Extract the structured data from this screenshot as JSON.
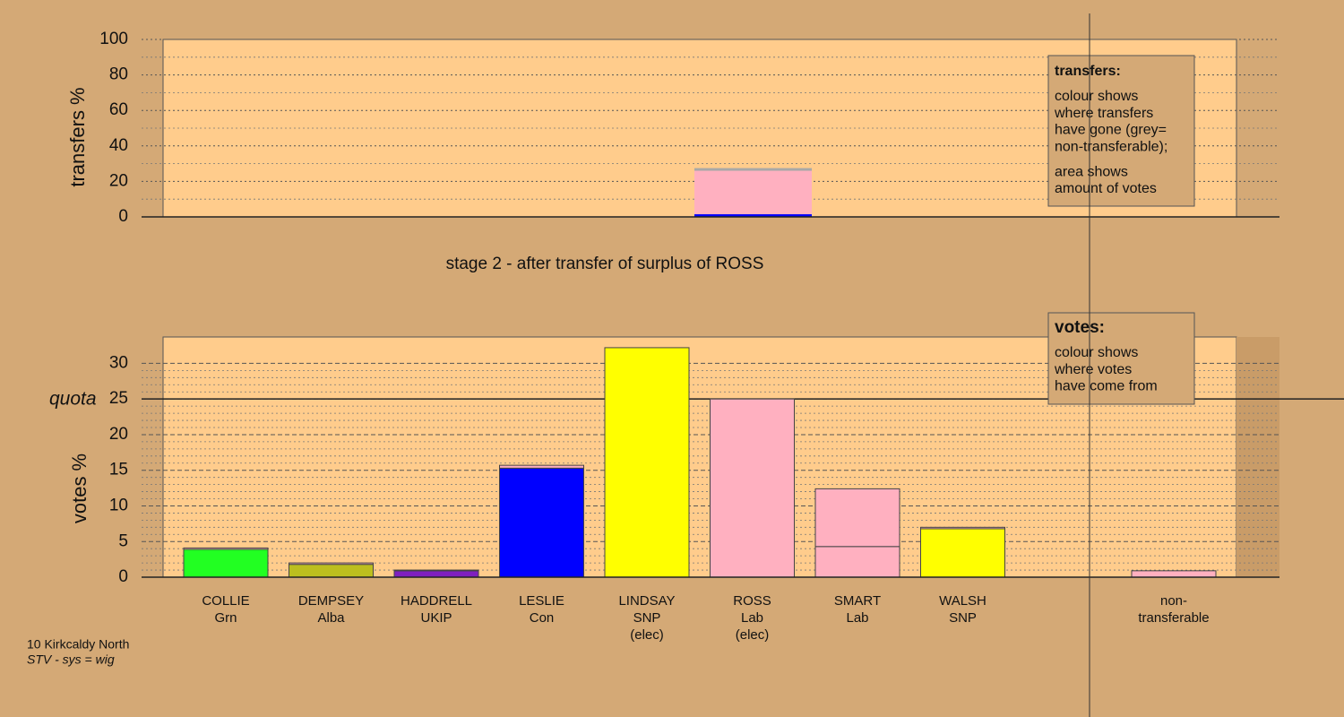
{
  "chart_data": [
    {
      "type": "stacked_bar",
      "ylabel": "transfers %",
      "ylim": [
        0,
        100
      ],
      "yticks": [
        0,
        20,
        40,
        60,
        80,
        100
      ],
      "series": [
        {
          "color": "#0000ff",
          "values": [
            1.5
          ]
        },
        {
          "color": "#ffb0c0",
          "values": [
            24.5
          ]
        },
        {
          "color": "#a8a8a8",
          "values": [
            1.5
          ]
        }
      ],
      "legend": {
        "title": "transfers:",
        "paragraphs": [
          [
            "colour shows",
            "where transfers",
            "have gone (grey=",
            "non-transferable);"
          ],
          [
            "area shows",
            "amount of votes"
          ]
        ]
      }
    },
    {
      "type": "stacked_bar",
      "title": "stage 2 - after transfer of surplus of ROSS",
      "ylabel": "votes %",
      "ylim": [
        0,
        33.7
      ],
      "yticks": [
        0,
        5,
        10,
        15,
        20,
        25,
        30
      ],
      "quota": {
        "label": "quota",
        "value": 25
      },
      "categories": [
        [
          "COLLIE",
          "Grn"
        ],
        [
          "DEMPSEY",
          "Alba"
        ],
        [
          "HADDRELL",
          "UKIP"
        ],
        [
          "LESLIE",
          "Con"
        ],
        [
          "LINDSAY",
          "SNP",
          "(elec)"
        ],
        [
          "ROSS",
          "Lab",
          "(elec)"
        ],
        [
          "SMART",
          "Lab"
        ],
        [
          "WALSH",
          "SNP"
        ],
        [
          "non-",
          "transferable"
        ]
      ],
      "series": [
        {
          "colors": [
            "#22ff22",
            "#bcbf1f",
            "#7f1fbf",
            "#0000ff",
            "#ffff00",
            "#ffb0c0",
            "#ffb0c0",
            "#ffff00",
            "#ffb0c0"
          ],
          "values": [
            3.9,
            1.8,
            0.9,
            15.3,
            32.2,
            25.0,
            4.3,
            6.8,
            0.9
          ]
        },
        {
          "color": "#ffb0c0",
          "values": [
            0.2,
            0.2,
            0.1,
            0.4,
            0,
            0,
            8.1,
            0.2,
            0
          ]
        }
      ],
      "legend": {
        "title": "votes:",
        "paragraphs": [
          [
            "colour shows",
            "where votes",
            "have come from"
          ]
        ]
      }
    }
  ],
  "footer": [
    "10 Kirkcaldy North",
    "STV - sys = wig"
  ]
}
